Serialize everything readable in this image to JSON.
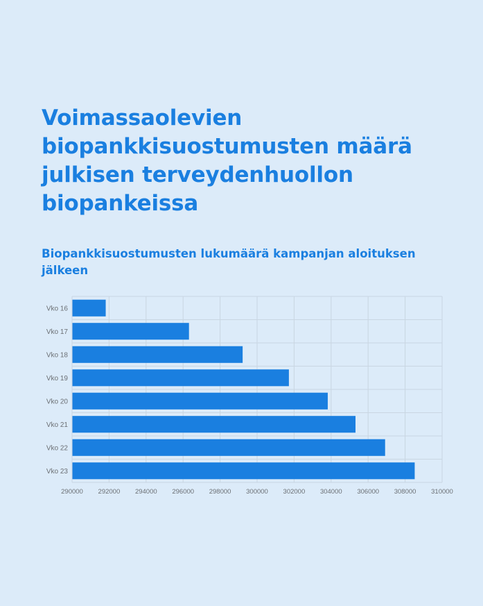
{
  "title": "Voimassaolevien biopankkisuostumusten määrä julkisen terveydenhuollon biopankeissa",
  "subtitle": "Biopankkisuostumusten lukumäärä kampanjan aloituksen jälkeen",
  "colors": {
    "background": "#dcebf9",
    "heading": "#1a7fe0",
    "bar": "#1a7fe0",
    "grid": "#c9d6e2",
    "tick_text": "#6b6f74"
  },
  "chart_data": {
    "type": "bar",
    "orientation": "horizontal",
    "categories": [
      "Vko 16",
      "Vko 17",
      "Vko 18",
      "Vko 19",
      "Vko 20",
      "Vko 21",
      "Vko 22",
      "Vko 23"
    ],
    "values": [
      291800,
      296300,
      299200,
      301700,
      303800,
      305300,
      306900,
      308500
    ],
    "xlim": [
      290000,
      310000
    ],
    "xticks": [
      "290000",
      "292000",
      "294000",
      "296000",
      "298000",
      "300000",
      "302000",
      "304000",
      "306000",
      "308000",
      "310000"
    ],
    "grid": true,
    "xlabel": "",
    "ylabel": ""
  }
}
